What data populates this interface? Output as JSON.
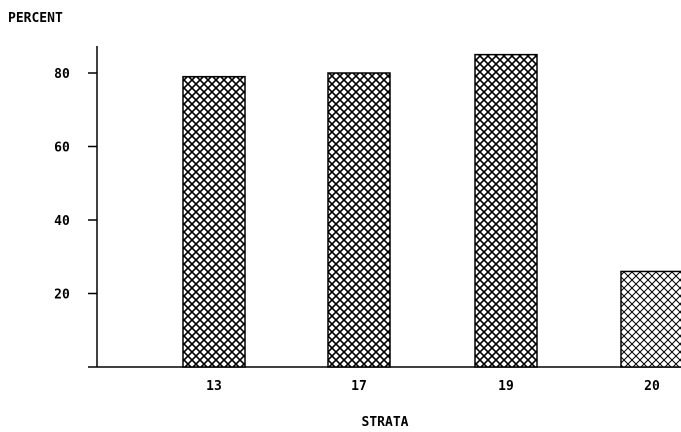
{
  "chart_data": {
    "type": "bar",
    "ylabel": "PERCENT",
    "xlabel": "STRATA",
    "categories": [
      "13",
      "17",
      "19",
      "20"
    ],
    "values": [
      79,
      80,
      85,
      26
    ],
    "yticks": [
      "20",
      "40",
      "60",
      "80"
    ],
    "ytick_values": [
      20,
      40,
      60,
      80
    ],
    "ylim": [
      0,
      90
    ],
    "grid": false,
    "colors": {
      "bar_fill": "#000000",
      "background": "#ffffff"
    }
  }
}
